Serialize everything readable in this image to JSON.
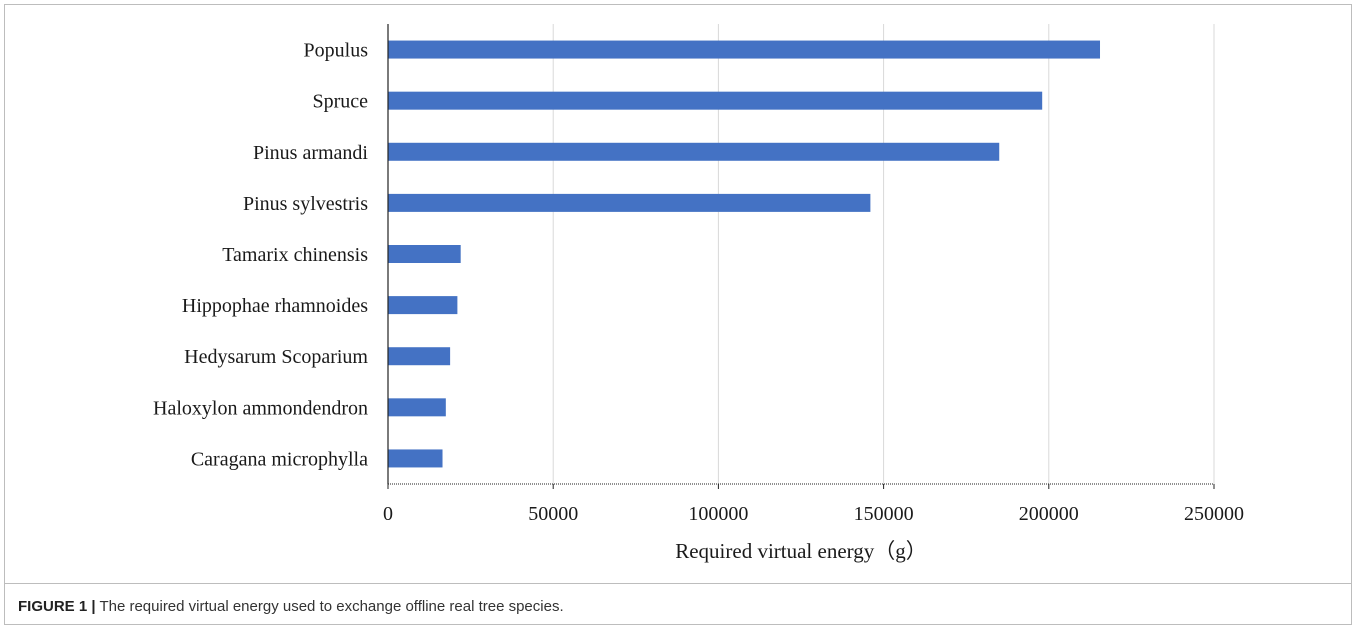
{
  "chart_data": {
    "type": "bar",
    "orientation": "horizontal",
    "categories": [
      "Populus",
      "Spruce",
      "Pinus armandi",
      "Pinus sylvestris",
      "Tamarix chinensis",
      "Hippophae rhamnoides",
      "Hedysarum Scoparium",
      "Haloxylon ammondendron",
      "Caragana microphylla"
    ],
    "values": [
      215500,
      198000,
      185000,
      146000,
      22000,
      21000,
      18800,
      17500,
      16500
    ],
    "xlabel": "Required virtual energy（g）",
    "ylabel": "",
    "xlim": [
      0,
      250000
    ],
    "xticks": [
      0,
      50000,
      100000,
      150000,
      200000,
      250000
    ],
    "xtick_labels": [
      "0",
      "50000",
      "100000",
      "150000",
      "200000",
      "250000"
    ],
    "grid": "vertical",
    "bar_color": "#4472c4"
  },
  "caption": {
    "figure_label": "FIGURE 1 |",
    "text": " The required virtual energy used to exchange offline real tree species."
  }
}
